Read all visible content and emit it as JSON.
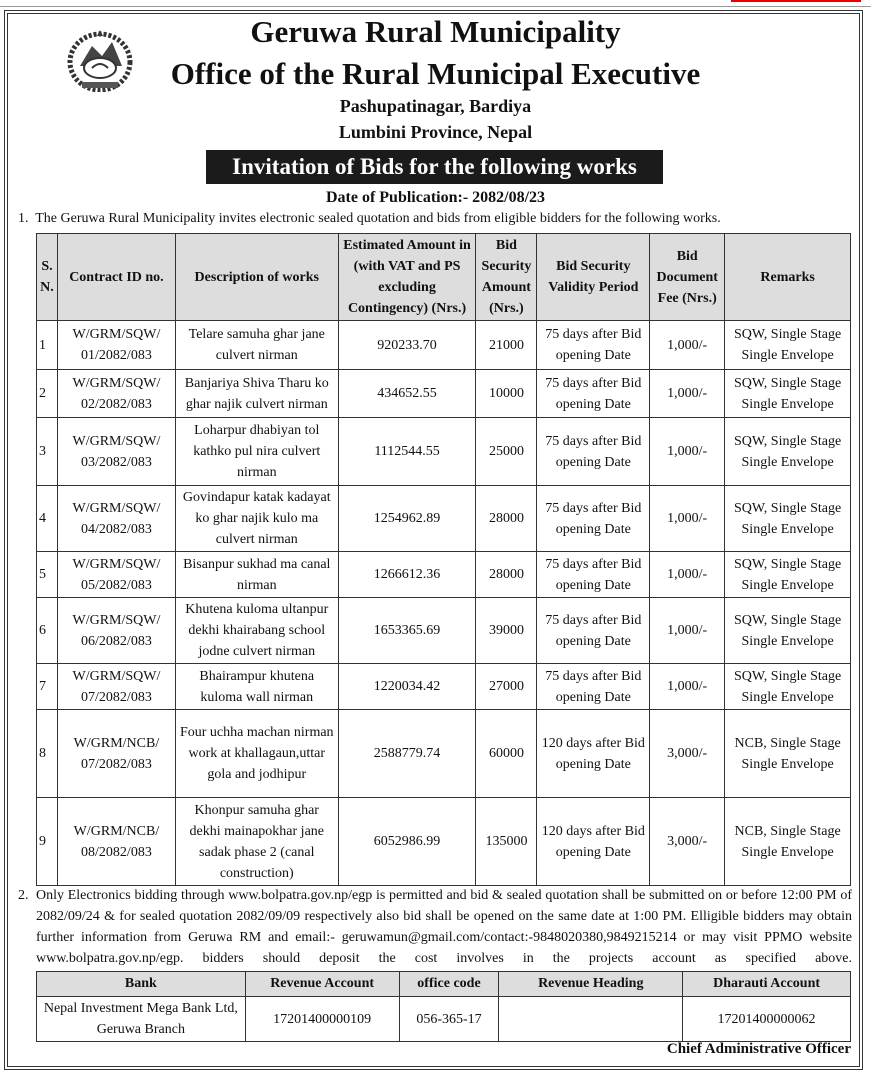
{
  "header": {
    "municipality": "Geruwa Rural Municipality",
    "office": "Office of the Rural Municipal Executive",
    "address_line1": "Pashupatinagar, Bardiya",
    "address_line2": "Lumbini Province, Nepal",
    "banner": "Invitation of Bids for the following works",
    "publication_date": "Date of Publication:- 2082/08/23"
  },
  "intro": {
    "number": "1.",
    "text": "The Geruwa Rural Municipality invites electronic  sealed quotation and bids  from eligible bidders for the following works."
  },
  "works_table": {
    "headers": [
      "S. N.",
      "Contract ID no.",
      "Description of works",
      "Estimated Amount in (with VAT and PS excluding Contingency) (Nrs.)",
      "Bid Security Amount (Nrs.)",
      "Bid Security Validity Period",
      "Bid Document Fee (Nrs.)",
      "Remarks"
    ],
    "rows": [
      [
        "1",
        "W/GRM/SQW/ 01/2082/083",
        "Telare samuha ghar jane culvert nirman",
        "920233.70",
        "21000",
        "75 days after Bid opening Date",
        "1,000/-",
        "SQW, Single Stage Single Envelope"
      ],
      [
        "2",
        "W/GRM/SQW/ 02/2082/083",
        "Banjariya Shiva Tharu ko ghar najik culvert nirman",
        "434652.55",
        "10000",
        "75 days after Bid opening Date",
        "1,000/-",
        "SQW, Single Stage Single Envelope"
      ],
      [
        "3",
        "W/GRM/SQW/ 03/2082/083",
        "Loharpur dhabiyan tol kathko pul nira culvert nirman",
        "1112544.55",
        "25000",
        "75 days after Bid opening Date",
        "1,000/-",
        "SQW, Single Stage Single Envelope"
      ],
      [
        "4",
        "W/GRM/SQW/ 04/2082/083",
        "Govindapur katak kadayat ko ghar najik kulo ma culvert nirman",
        "1254962.89",
        "28000",
        "75 days after Bid opening Date",
        "1,000/-",
        "SQW, Single Stage Single Envelope"
      ],
      [
        "5",
        "W/GRM/SQW/ 05/2082/083",
        "Bisanpur sukhad ma canal nirman",
        "1266612.36",
        "28000",
        "75 days after Bid opening Date",
        "1,000/-",
        "SQW, Single Stage Single Envelope"
      ],
      [
        "6",
        "W/GRM/SQW/ 06/2082/083",
        "Khutena kuloma ultanpur dekhi khairabang school jodne culvert nirman",
        "1653365.69",
        "39000",
        "75 days after Bid opening Date",
        "1,000/-",
        "SQW, Single Stage Single Envelope"
      ],
      [
        "7",
        "W/GRM/SQW/ 07/2082/083",
        "Bhairampur khutena kuloma wall nirman",
        "1220034.42",
        "27000",
        "75 days after Bid opening Date",
        "1,000/-",
        "SQW, Single Stage Single Envelope"
      ],
      [
        "8",
        "W/GRM/NCB/ 07/2082/083",
        "Four uchha machan nirman work at khallagaun,uttar gola and jodhipur",
        "2588779.74",
        "60000",
        "120 days after Bid opening Date",
        "3,000/-",
        "NCB, Single Stage Single Envelope"
      ],
      [
        "9",
        "W/GRM/NCB/ 08/2082/083",
        "Khonpur samuha ghar dekhi mainapokhar jane sadak phase 2 (canal construction)",
        "6052986.99",
        "135000",
        "120 days after Bid opening Date",
        "3,000/-",
        "NCB, Single Stage Single Envelope"
      ]
    ]
  },
  "note": {
    "number": "2.",
    "text": "Only Electronics bidding through www.bolpatra.gov.np/egp is permitted and bid  &  sealed quotation shall be submitted on or before 12:00 PM of 2082/09/24 & for sealed quotation 2082/09/09 respectively  also  bid shall be opened on the same date at 1:00 PM. Elligible bidders may obtain further information from Geruwa RM and email:- geruwamun@gmail.com/contact:-9848020380,9849215214 or may visit PPMO website www.bolpatra.gov.np/egp. bidders should deposit the cost involves  in the projects account as specified above."
  },
  "bank_table": {
    "headers": [
      "Bank",
      "Revenue Account",
      "office code",
      "Revenue Heading",
      "Dharauti Account"
    ],
    "row": [
      "Nepal Investment Mega Bank Ltd, Geruwa Branch",
      "17201400000109",
      "056-365-17",
      "",
      "17201400000062"
    ]
  },
  "signature": "Chief Administrative Officer",
  "logo_text": "Government emblem of Nepal"
}
